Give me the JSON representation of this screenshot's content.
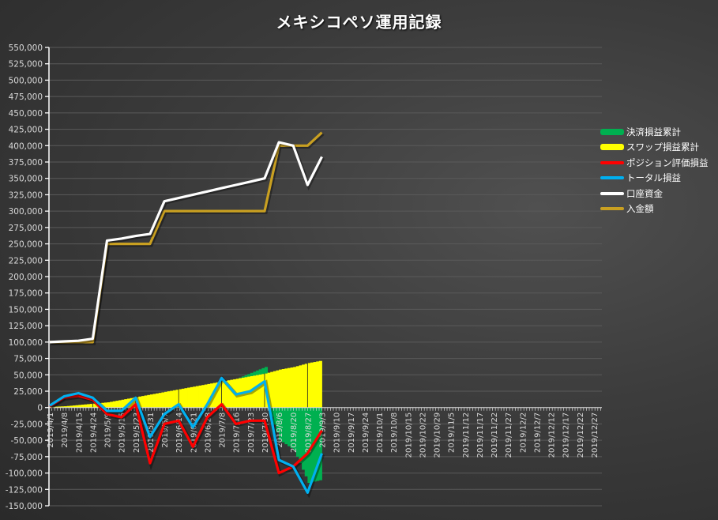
{
  "title": "メキシコペソ運用記録",
  "chart_data": {
    "type": "line+bar",
    "title": "メキシコペソ運用記録",
    "xlabel": "",
    "ylabel": "",
    "ylim": [
      -150000,
      550000
    ],
    "ytick_step": 25000,
    "grid": true,
    "legend_position": "right",
    "yticks": [
      "550,000",
      "525,000",
      "500,000",
      "475,000",
      "450,000",
      "425,000",
      "400,000",
      "375,000",
      "350,000",
      "325,000",
      "300,000",
      "275,000",
      "250,000",
      "225,000",
      "200,000",
      "175,000",
      "150,000",
      "125,000",
      "100,000",
      "75,000",
      "50,000",
      "25,000",
      "0",
      "-25,000",
      "-50,000",
      "-75,000",
      "-100,000",
      "-125,000",
      "-150,000"
    ],
    "xticks": [
      "2019/4/1",
      "2019/4/8",
      "2019/4/15",
      "2019/4/24",
      "2019/5/9",
      "2019/5/15",
      "2019/5/23",
      "2019/5/31",
      "2019/6/7",
      "2019/6/14",
      "2019/6/21",
      "2019/6/28",
      "2019/7/8",
      "2019/7/16",
      "2019/7/23",
      "2019/7/30",
      "2019/8/6",
      "2019/8/20",
      "2019/8/27",
      "2019/9/3",
      "2019/9/10",
      "2019/9/17",
      "2019/9/24",
      "2019/10/1",
      "2019/10/8",
      "2019/10/15",
      "2019/10/22",
      "2019/10/29",
      "2019/11/5",
      "2019/11/12",
      "2019/11/17",
      "2019/11/22",
      "2019/11/27",
      "2019/12/2",
      "2019/12/7",
      "2019/12/12",
      "2019/12/17",
      "2019/12/22",
      "2019/12/27"
    ],
    "x": [
      0,
      1,
      2,
      3,
      4,
      5,
      6,
      7,
      8,
      9,
      10,
      11,
      12,
      13,
      14,
      15,
      16,
      17,
      18,
      19
    ],
    "series": [
      {
        "name": "決済損益累計",
        "type": "bar",
        "color": "#00b050",
        "values": [
          0,
          0,
          0,
          0,
          0,
          0,
          0,
          0,
          0,
          0,
          0,
          0,
          0,
          0,
          5000,
          10000,
          -50000,
          -65000,
          -115000,
          -110000
        ]
      },
      {
        "name": "スワップ損益累計",
        "type": "bar",
        "color": "#ffff00",
        "values": [
          1000,
          2000,
          4000,
          6000,
          8000,
          12000,
          16000,
          20000,
          24000,
          28000,
          32000,
          36000,
          40000,
          44000,
          48000,
          52000,
          58000,
          62000,
          68000,
          72000
        ]
      },
      {
        "name": "ポジション評価損益",
        "type": "line",
        "color": "#ff0000",
        "values": [
          2000,
          15000,
          18000,
          12000,
          -10000,
          -15000,
          5000,
          -85000,
          -25000,
          -20000,
          -60000,
          -15000,
          5000,
          -25000,
          -20000,
          -20000,
          -100000,
          -90000,
          -70000,
          -35000
        ]
      },
      {
        "name": "トータル損益",
        "type": "line",
        "color": "#00b0f0",
        "values": [
          3000,
          17000,
          22000,
          15000,
          -5000,
          -5000,
          15000,
          -45000,
          -10000,
          5000,
          -30000,
          5000,
          45000,
          20000,
          25000,
          40000,
          -80000,
          -90000,
          -130000,
          -70000
        ]
      },
      {
        "name": "口座資金",
        "type": "line",
        "color": "#ffffff",
        "values": [
          100000,
          101000,
          102000,
          105000,
          255000,
          258000,
          262000,
          265000,
          315000,
          320000,
          325000,
          330000,
          335000,
          340000,
          345000,
          350000,
          405000,
          400000,
          340000,
          383000
        ]
      },
      {
        "name": "入金額",
        "type": "line",
        "color": "#c9a021",
        "values": [
          100000,
          100000,
          100000,
          100000,
          250000,
          250000,
          250000,
          250000,
          300000,
          300000,
          300000,
          300000,
          300000,
          300000,
          300000,
          300000,
          400000,
          400000,
          400000,
          420000
        ]
      }
    ]
  },
  "legend": [
    {
      "label": "決済損益累計",
      "color": "#00b050",
      "kind": "box"
    },
    {
      "label": "スワップ損益累計",
      "color": "#ffff00",
      "kind": "box"
    },
    {
      "label": "ポジション評価損益",
      "color": "#ff0000",
      "kind": "line"
    },
    {
      "label": "トータル損益",
      "color": "#00b0f0",
      "kind": "line"
    },
    {
      "label": "口座資金",
      "color": "#ffffff",
      "kind": "line"
    },
    {
      "label": "入金額",
      "color": "#c9a021",
      "kind": "line"
    }
  ]
}
